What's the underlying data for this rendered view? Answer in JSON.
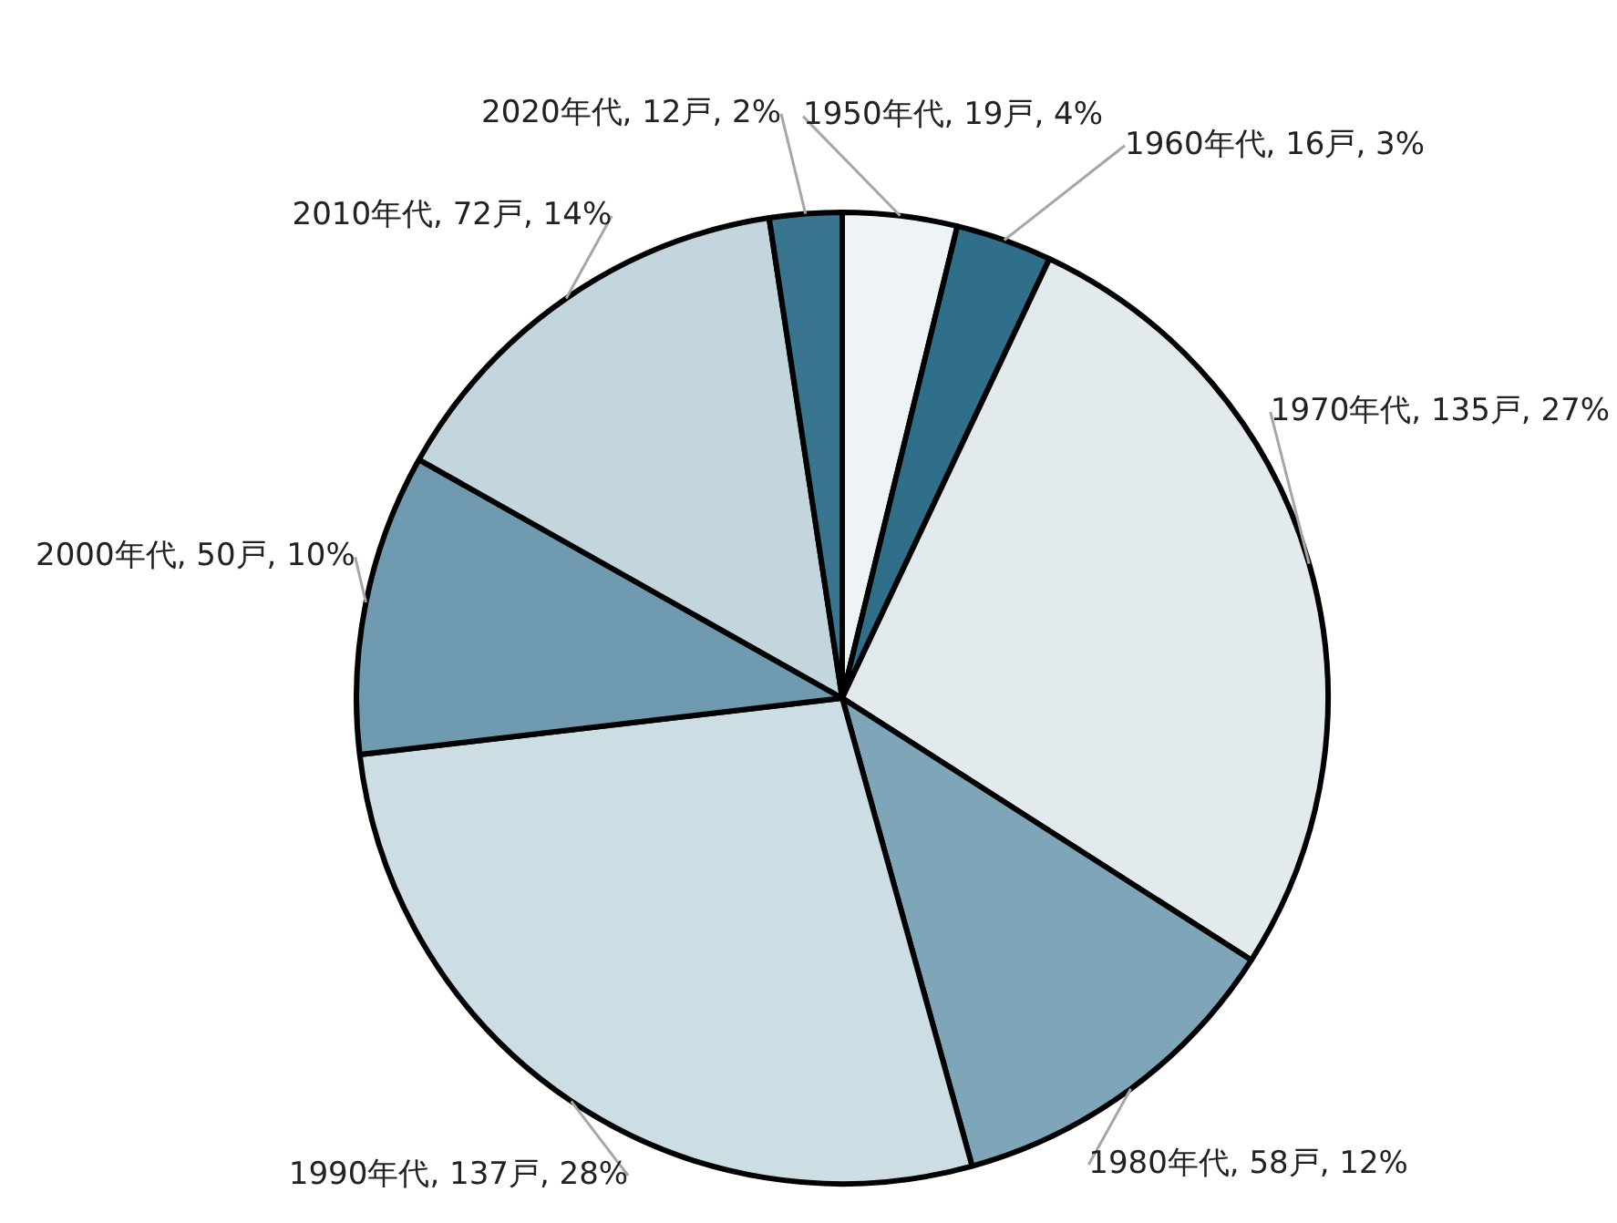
{
  "chart_data": {
    "type": "pie",
    "categories": [
      "1950年代",
      "1960年代",
      "1970年代",
      "1980年代",
      "1990年代",
      "2000年代",
      "2010年代",
      "2020年代"
    ],
    "values": [
      19,
      16,
      135,
      58,
      137,
      50,
      72,
      12
    ],
    "value_labels": [
      "19戸, 4%",
      "16戸, 3%",
      "135戸, 27%",
      "58戸, 12%",
      "137戸, 28%",
      "50戸, 10%",
      "72戸, 14%",
      "12戸, 2%"
    ],
    "colors": [
      "#eef3f5",
      "#2f6f8a",
      "#e2eaee",
      "#7fa6b8",
      "#cddde4",
      "#6f9ab0",
      "#c3d5dd",
      "#3a7590"
    ],
    "legend": false
  }
}
